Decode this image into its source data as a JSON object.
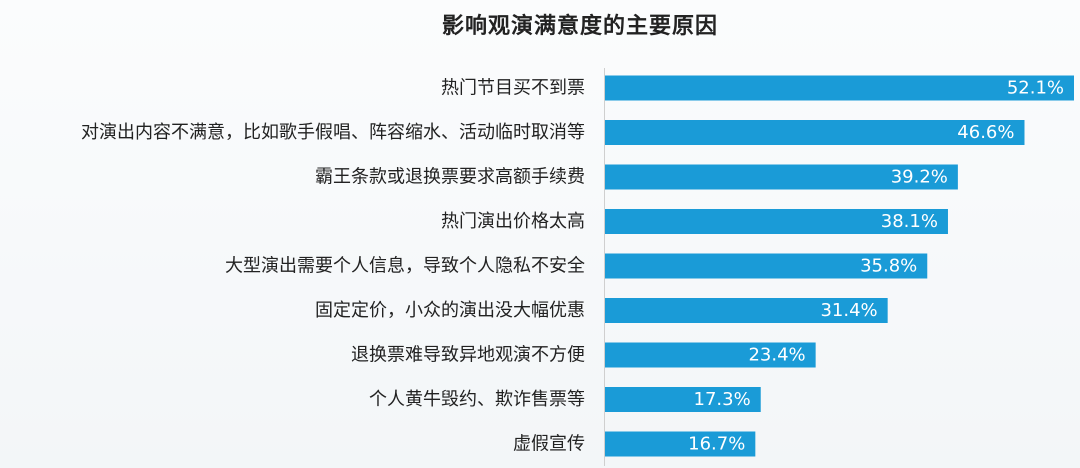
{
  "chart_data": {
    "type": "bar",
    "orientation": "horizontal",
    "title": "影响观演满意度的主要原因",
    "categories": [
      "热门节目买不到票",
      "对演出内容不满意，比如歌手假唱、阵容缩水、活动临时取消等",
      "霸王条款或退换票要求高额手续费",
      "热门演出价格太高",
      "大型演出需要个人信息，导致个人隐私不安全",
      "固定定价，小众的演出没大幅优惠",
      "退换票难导致异地观演不方便",
      "个人黄牛毁约、欺诈售票等",
      "虚假宣传"
    ],
    "values": [
      52.1,
      46.6,
      39.2,
      38.1,
      35.8,
      31.4,
      23.4,
      17.3,
      16.7
    ],
    "value_labels": [
      "52.1%",
      "46.6%",
      "39.2%",
      "38.1%",
      "35.8%",
      "31.4%",
      "23.4%",
      "17.3%",
      "16.7%"
    ],
    "unit": "%",
    "bar_color": "#1a9bd7",
    "axis_line_color": "#cfcfcf",
    "grid": false,
    "legend": "none"
  }
}
